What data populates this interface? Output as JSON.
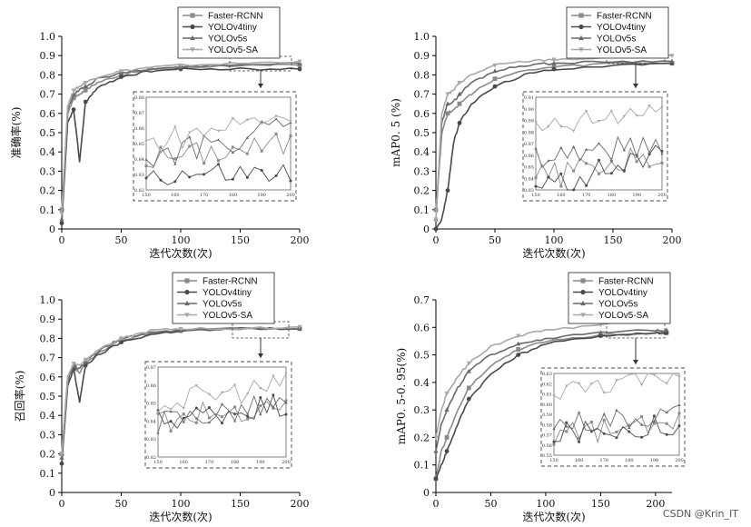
{
  "watermark": "CSDN @Krin_IT",
  "colors": {
    "Faster-RCNN": "#8a8a8a",
    "YOLOv4tiny": "#4a4a4a",
    "YOLOv5s": "#6a6a6a",
    "YOLOv5-SA": "#a8a8a8"
  },
  "chart_data": [
    {
      "type": "line",
      "title": "",
      "xlabel": "迭代次数(次)",
      "ylabel": "准确率(%)",
      "xlim": [
        0,
        200
      ],
      "ylim": [
        0,
        1.0
      ],
      "xticks": [
        "0",
        "50",
        "100",
        "150",
        "200"
      ],
      "yticks": [
        "0",
        "0.1",
        "0.2",
        "0.3",
        "0.4",
        "0.5",
        "0.6",
        "0.7",
        "0.8",
        "0.9",
        "1.0"
      ],
      "legend": [
        "Faster-RCNN",
        "YOLOv4tiny",
        "YOLOv5s",
        "YOLOv5-SA"
      ],
      "legend_position": "top-right",
      "inset": {
        "xrange": [
          150,
          200
        ],
        "yrange": [
          0.82,
          0.88
        ],
        "xticks": [
          "150",
          "160",
          "170",
          "180",
          "190",
          "200"
        ],
        "yticks": [
          "0.82",
          "0.83",
          "0.84",
          "0.85",
          "0.86",
          "0.87",
          "0.88"
        ]
      },
      "series": [
        {
          "name": "Faster-RCNN",
          "x": [
            0,
            5,
            10,
            15,
            20,
            30,
            50,
            75,
            100,
            150,
            200
          ],
          "y": [
            0.1,
            0.6,
            0.68,
            0.7,
            0.72,
            0.76,
            0.8,
            0.83,
            0.84,
            0.85,
            0.85
          ]
        },
        {
          "name": "YOLOv4tiny",
          "x": [
            0,
            5,
            10,
            15,
            20,
            30,
            50,
            75,
            100,
            150,
            200
          ],
          "y": [
            0.03,
            0.55,
            0.62,
            0.35,
            0.66,
            0.73,
            0.79,
            0.82,
            0.83,
            0.83,
            0.83
          ]
        },
        {
          "name": "YOLOv5s",
          "x": [
            0,
            5,
            10,
            15,
            20,
            30,
            50,
            75,
            100,
            150,
            200
          ],
          "y": [
            0.05,
            0.62,
            0.7,
            0.72,
            0.74,
            0.78,
            0.81,
            0.83,
            0.84,
            0.85,
            0.86
          ]
        },
        {
          "name": "YOLOv5-SA",
          "x": [
            0,
            5,
            10,
            15,
            20,
            30,
            50,
            75,
            100,
            150,
            200
          ],
          "y": [
            0.08,
            0.64,
            0.72,
            0.74,
            0.76,
            0.79,
            0.82,
            0.84,
            0.85,
            0.86,
            0.87
          ]
        }
      ]
    },
    {
      "type": "line",
      "title": "",
      "xlabel": "迭代次数(次)",
      "ylabel": "mAP0. 5 (%)",
      "xlim": [
        0,
        200
      ],
      "ylim": [
        0,
        1.0
      ],
      "xticks": [
        "0",
        "50",
        "100",
        "150",
        "200"
      ],
      "yticks": [
        "0",
        "0.1",
        "0.2",
        "0.3",
        "0.4",
        "0.5",
        "0.6",
        "0.7",
        "0.8",
        "0.9",
        "1.0"
      ],
      "legend": [
        "Faster-RCNN",
        "YOLOv4tiny",
        "YOLOv5s",
        "YOLOv5-SA"
      ],
      "legend_position": "top-right",
      "inset": {
        "xrange": [
          150,
          200
        ],
        "yrange": [
          0.83,
          0.91
        ],
        "xticks": [
          "150",
          "160",
          "170",
          "180",
          "190",
          "200"
        ],
        "yticks": [
          "0.83",
          "0.84",
          "0.85",
          "0.86",
          "0.87",
          "0.88",
          "0.89",
          "0.90",
          "0.91"
        ]
      },
      "series": [
        {
          "name": "Faster-RCNN",
          "x": [
            0,
            5,
            10,
            15,
            20,
            30,
            50,
            75,
            100,
            150,
            200
          ],
          "y": [
            0.1,
            0.5,
            0.6,
            0.62,
            0.65,
            0.7,
            0.78,
            0.82,
            0.84,
            0.86,
            0.86
          ]
        },
        {
          "name": "YOLOv4tiny",
          "x": [
            0,
            5,
            10,
            15,
            20,
            30,
            50,
            75,
            100,
            150,
            200
          ],
          "y": [
            0.0,
            0.05,
            0.2,
            0.45,
            0.55,
            0.65,
            0.74,
            0.8,
            0.83,
            0.85,
            0.86
          ]
        },
        {
          "name": "YOLOv5s",
          "x": [
            0,
            5,
            10,
            15,
            20,
            30,
            50,
            75,
            100,
            150,
            200
          ],
          "y": [
            0.05,
            0.55,
            0.65,
            0.66,
            0.7,
            0.76,
            0.82,
            0.85,
            0.86,
            0.87,
            0.87
          ]
        },
        {
          "name": "YOLOv5-SA",
          "x": [
            0,
            5,
            10,
            15,
            20,
            30,
            50,
            75,
            100,
            150,
            200
          ],
          "y": [
            0.05,
            0.6,
            0.7,
            0.72,
            0.76,
            0.8,
            0.85,
            0.87,
            0.88,
            0.89,
            0.9
          ]
        }
      ]
    },
    {
      "type": "line",
      "title": "",
      "xlabel": "迭代次数(次)",
      "ylabel": "召回率(%)",
      "xlim": [
        0,
        200
      ],
      "ylim": [
        0,
        1.0
      ],
      "xticks": [
        "0",
        "50",
        "100",
        "150",
        "200"
      ],
      "yticks": [
        "0",
        "0.1",
        "0.2",
        "0.3",
        "0.4",
        "0.5",
        "0.6",
        "0.7",
        "0.8",
        "0.9",
        "1.0"
      ],
      "legend": [
        "Faster-RCNN",
        "YOLOv4tiny",
        "YOLOv5s",
        "YOLOv5-SA"
      ],
      "legend_position": "top-right",
      "inset": {
        "xrange": [
          150,
          200
        ],
        "yrange": [
          0.82,
          0.87
        ],
        "xticks": [
          "150",
          "160",
          "170",
          "180",
          "190",
          "200"
        ],
        "yticks": [
          "0.82",
          "0.83",
          "0.84",
          "0.85",
          "0.86",
          "0.87"
        ]
      },
      "series": [
        {
          "name": "Faster-RCNN",
          "x": [
            0,
            5,
            10,
            15,
            20,
            30,
            50,
            75,
            100,
            150,
            200
          ],
          "y": [
            0.2,
            0.6,
            0.65,
            0.62,
            0.67,
            0.72,
            0.79,
            0.83,
            0.84,
            0.85,
            0.85
          ]
        },
        {
          "name": "YOLOv4tiny",
          "x": [
            0,
            5,
            10,
            15,
            20,
            30,
            50,
            75,
            100,
            150,
            200
          ],
          "y": [
            0.15,
            0.55,
            0.64,
            0.47,
            0.66,
            0.71,
            0.78,
            0.82,
            0.84,
            0.85,
            0.85
          ]
        },
        {
          "name": "YOLOv5s",
          "x": [
            0,
            5,
            10,
            15,
            20,
            30,
            50,
            75,
            100,
            150,
            200
          ],
          "y": [
            0.18,
            0.58,
            0.66,
            0.64,
            0.68,
            0.73,
            0.8,
            0.83,
            0.84,
            0.85,
            0.85
          ]
        },
        {
          "name": "YOLOv5-SA",
          "x": [
            0,
            5,
            10,
            15,
            20,
            30,
            50,
            75,
            100,
            150,
            200
          ],
          "y": [
            0.2,
            0.6,
            0.67,
            0.66,
            0.69,
            0.74,
            0.8,
            0.84,
            0.85,
            0.85,
            0.86
          ]
        }
      ]
    },
    {
      "type": "line",
      "title": "",
      "xlabel": "迭代次数(次)",
      "ylabel": "mAP0. 5-0. 95(%)",
      "xlim": [
        0,
        215
      ],
      "ylim": [
        0,
        0.7
      ],
      "xticks": [
        "0",
        "50",
        "100",
        "150",
        "200"
      ],
      "yticks": [
        "0",
        "0.1",
        "0.2",
        "0.3",
        "0.4",
        "0.5",
        "0.6",
        "0.7"
      ],
      "legend": [
        "Faster-RCNN",
        "YOLOv4tiny",
        "YOLOv5s",
        "YOLOv5-SA"
      ],
      "legend_position": "top-right",
      "inset": {
        "xrange": [
          150,
          200
        ],
        "yrange": [
          0.55,
          0.63
        ],
        "xticks": [
          "150",
          "160",
          "170",
          "180",
          "190",
          "200"
        ],
        "yticks": [
          "0.55",
          "0.56",
          "0.57",
          "0.58",
          "0.59",
          "0.60",
          "0.61",
          "0.62",
          "0.63"
        ]
      },
      "series": [
        {
          "name": "Faster-RCNN",
          "x": [
            0,
            5,
            10,
            20,
            30,
            50,
            75,
            100,
            150,
            200,
            210
          ],
          "y": [
            0.05,
            0.15,
            0.2,
            0.3,
            0.38,
            0.46,
            0.52,
            0.55,
            0.57,
            0.58,
            0.58
          ]
        },
        {
          "name": "YOLOv4tiny",
          "x": [
            0,
            5,
            10,
            20,
            30,
            50,
            75,
            100,
            150,
            200,
            210
          ],
          "y": [
            0.05,
            0.1,
            0.15,
            0.25,
            0.34,
            0.43,
            0.5,
            0.54,
            0.57,
            0.58,
            0.58
          ]
        },
        {
          "name": "YOLOv5s",
          "x": [
            0,
            5,
            10,
            20,
            30,
            50,
            75,
            100,
            150,
            200,
            210
          ],
          "y": [
            0.15,
            0.25,
            0.3,
            0.38,
            0.44,
            0.5,
            0.54,
            0.56,
            0.58,
            0.59,
            0.59
          ]
        },
        {
          "name": "YOLOv5-SA",
          "x": [
            0,
            5,
            10,
            20,
            30,
            50,
            75,
            100,
            150,
            200,
            210
          ],
          "y": [
            0.2,
            0.3,
            0.36,
            0.42,
            0.47,
            0.53,
            0.57,
            0.59,
            0.61,
            0.63,
            0.63
          ]
        }
      ]
    }
  ]
}
